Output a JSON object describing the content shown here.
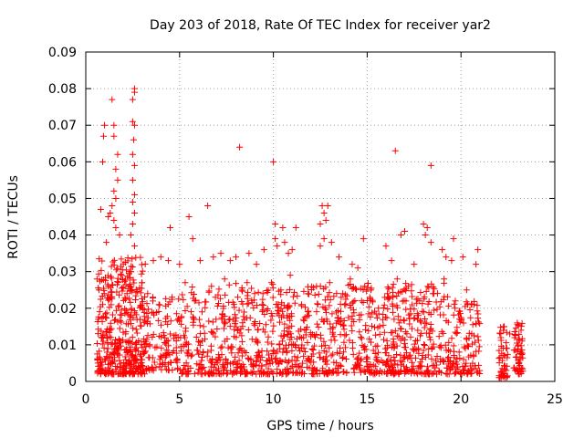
{
  "chart_data": {
    "type": "scatter",
    "title": "Day 203 of 2018, Rate Of TEC Index for receiver yar2",
    "xlabel": "GPS time / hours",
    "ylabel": "ROTI / TECUs",
    "xlim": [
      0,
      25
    ],
    "ylim": [
      0,
      0.09
    ],
    "xticks": [
      0,
      5,
      10,
      15,
      20,
      25
    ],
    "xtick_labels": [
      "0",
      "5",
      "10",
      "15",
      "20",
      "25"
    ],
    "yticks": [
      0,
      0.01,
      0.02,
      0.03,
      0.04,
      0.05,
      0.06,
      0.07,
      0.08,
      0.09
    ],
    "ytick_labels": [
      "0",
      "0.01",
      "0.02",
      "0.03",
      "0.04",
      "0.05",
      "0.06",
      "0.07",
      "0.08",
      "0.09"
    ],
    "grid": true,
    "marker": "+",
    "color": "#ff0000",
    "series": [
      {
        "name": "ROTI",
        "points": [
          [
            0.8,
            0.047
          ],
          [
            0.9,
            0.06
          ],
          [
            0.95,
            0.067
          ],
          [
            1.0,
            0.07
          ],
          [
            1.4,
            0.077
          ],
          [
            1.5,
            0.07
          ],
          [
            1.5,
            0.067
          ],
          [
            1.7,
            0.062
          ],
          [
            1.6,
            0.058
          ],
          [
            1.7,
            0.055
          ],
          [
            1.5,
            0.052
          ],
          [
            1.6,
            0.05
          ],
          [
            1.4,
            0.048
          ],
          [
            1.3,
            0.046
          ],
          [
            1.2,
            0.045
          ],
          [
            1.5,
            0.044
          ],
          [
            1.6,
            0.042
          ],
          [
            1.8,
            0.04
          ],
          [
            1.1,
            0.038
          ],
          [
            2.6,
            0.08
          ],
          [
            2.6,
            0.079
          ],
          [
            2.5,
            0.077
          ],
          [
            2.5,
            0.071
          ],
          [
            2.6,
            0.07
          ],
          [
            2.55,
            0.066
          ],
          [
            2.5,
            0.062
          ],
          [
            2.6,
            0.059
          ],
          [
            2.5,
            0.055
          ],
          [
            2.6,
            0.051
          ],
          [
            2.5,
            0.049
          ],
          [
            2.6,
            0.046
          ],
          [
            2.5,
            0.043
          ],
          [
            2.4,
            0.04
          ],
          [
            2.6,
            0.037
          ],
          [
            4.5,
            0.042
          ],
          [
            5.5,
            0.045
          ],
          [
            6.5,
            0.048
          ],
          [
            5.7,
            0.039
          ],
          [
            4.0,
            0.034
          ],
          [
            3.6,
            0.033
          ],
          [
            4.4,
            0.033
          ],
          [
            5.0,
            0.032
          ],
          [
            6.1,
            0.033
          ],
          [
            6.8,
            0.034
          ],
          [
            7.2,
            0.035
          ],
          [
            7.7,
            0.033
          ],
          [
            8.0,
            0.034
          ],
          [
            8.2,
            0.064
          ],
          [
            8.7,
            0.035
          ],
          [
            9.1,
            0.032
          ],
          [
            9.5,
            0.036
          ],
          [
            10.0,
            0.06
          ],
          [
            10.1,
            0.043
          ],
          [
            10.1,
            0.039
          ],
          [
            10.2,
            0.037
          ],
          [
            10.5,
            0.042
          ],
          [
            10.6,
            0.038
          ],
          [
            11.0,
            0.036
          ],
          [
            11.2,
            0.042
          ],
          [
            10.8,
            0.035
          ],
          [
            12.5,
            0.043
          ],
          [
            12.6,
            0.048
          ],
          [
            12.7,
            0.046
          ],
          [
            12.8,
            0.044
          ],
          [
            12.9,
            0.048
          ],
          [
            12.7,
            0.039
          ],
          [
            13.1,
            0.038
          ],
          [
            12.5,
            0.037
          ],
          [
            13.5,
            0.034
          ],
          [
            14.2,
            0.032
          ],
          [
            14.8,
            0.039
          ],
          [
            14.5,
            0.031
          ],
          [
            16.0,
            0.037
          ],
          [
            16.3,
            0.033
          ],
          [
            16.5,
            0.063
          ],
          [
            16.8,
            0.04
          ],
          [
            17.0,
            0.041
          ],
          [
            17.5,
            0.032
          ],
          [
            18.0,
            0.043
          ],
          [
            18.2,
            0.042
          ],
          [
            18.4,
            0.059
          ],
          [
            18.1,
            0.04
          ],
          [
            18.4,
            0.038
          ],
          [
            19.0,
            0.036
          ],
          [
            19.2,
            0.034
          ],
          [
            19.6,
            0.039
          ],
          [
            19.5,
            0.033
          ],
          [
            20.1,
            0.034
          ],
          [
            20.9,
            0.036
          ],
          [
            20.8,
            0.032
          ],
          [
            0.6,
            0.028
          ],
          [
            0.7,
            0.025
          ],
          [
            0.9,
            0.021
          ],
          [
            1.2,
            0.026
          ],
          [
            1.9,
            0.029
          ],
          [
            2.2,
            0.024
          ],
          [
            3.0,
            0.027
          ],
          [
            3.3,
            0.024
          ],
          [
            3.9,
            0.021
          ],
          [
            4.6,
            0.023
          ],
          [
            5.3,
            0.027
          ],
          [
            5.8,
            0.022
          ],
          [
            6.2,
            0.019
          ],
          [
            6.7,
            0.026
          ],
          [
            7.4,
            0.028
          ],
          [
            8.1,
            0.023
          ],
          [
            8.6,
            0.027
          ],
          [
            9.0,
            0.024
          ],
          [
            9.4,
            0.021
          ],
          [
            9.9,
            0.027
          ],
          [
            10.4,
            0.025
          ],
          [
            10.9,
            0.029
          ],
          [
            11.5,
            0.021
          ],
          [
            11.9,
            0.018
          ],
          [
            12.3,
            0.026
          ],
          [
            13.0,
            0.027
          ],
          [
            13.7,
            0.024
          ],
          [
            14.1,
            0.028
          ],
          [
            14.7,
            0.022
          ],
          [
            15.2,
            0.025
          ],
          [
            15.6,
            0.02
          ],
          [
            16.1,
            0.023
          ],
          [
            16.6,
            0.028
          ],
          [
            17.2,
            0.026
          ],
          [
            17.8,
            0.022
          ],
          [
            18.5,
            0.024
          ],
          [
            19.1,
            0.028
          ],
          [
            19.7,
            0.022
          ],
          [
            20.3,
            0.025
          ],
          [
            20.7,
            0.021
          ],
          [
            22.3,
            0.015
          ],
          [
            22.6,
            0.013
          ],
          [
            23.0,
            0.016
          ],
          [
            23.2,
            0.014
          ]
        ],
        "bands": [
          {
            "from": 0.6,
            "to": 3.2,
            "ymin": 0.002,
            "ymax": 0.034,
            "n": 420
          },
          {
            "from": 3.2,
            "to": 5.0,
            "ymin": 0.003,
            "ymax": 0.024,
            "n": 110
          },
          {
            "from": 5.0,
            "to": 7.5,
            "ymin": 0.002,
            "ymax": 0.026,
            "n": 170
          },
          {
            "from": 7.5,
            "to": 10.5,
            "ymin": 0.002,
            "ymax": 0.027,
            "n": 230
          },
          {
            "from": 10.5,
            "to": 13.5,
            "ymin": 0.002,
            "ymax": 0.026,
            "n": 230
          },
          {
            "from": 13.5,
            "to": 16.5,
            "ymin": 0.002,
            "ymax": 0.027,
            "n": 230
          },
          {
            "from": 16.5,
            "to": 19.5,
            "ymin": 0.002,
            "ymax": 0.027,
            "n": 230
          },
          {
            "from": 19.5,
            "to": 21.0,
            "ymin": 0.002,
            "ymax": 0.022,
            "n": 110
          },
          {
            "from": 22.0,
            "to": 22.5,
            "ymin": 0.001,
            "ymax": 0.015,
            "n": 45
          },
          {
            "from": 22.8,
            "to": 23.3,
            "ymin": 0.002,
            "ymax": 0.016,
            "n": 55
          }
        ]
      }
    ]
  }
}
